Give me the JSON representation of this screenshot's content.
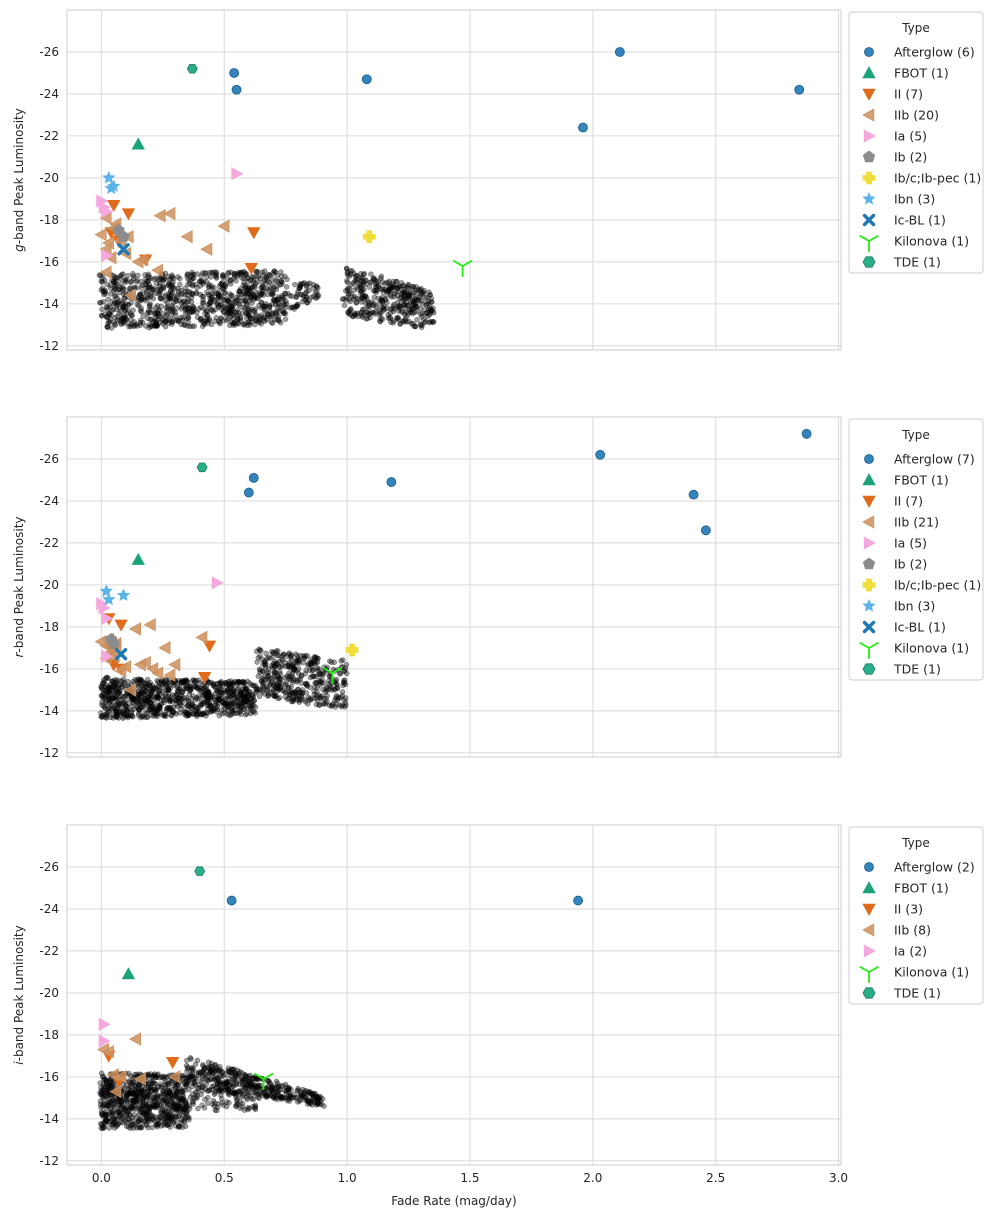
{
  "figure": {
    "xlabel": "Fade Rate (mag/day)",
    "x_ticks": [
      "0.0",
      "0.5",
      "1.0",
      "1.5",
      "2.0",
      "2.5",
      "3.0"
    ],
    "y_ticks": [
      "-26",
      "-24",
      "-22",
      "-20",
      "-18",
      "-16",
      "-14",
      "-12"
    ],
    "legend_title": "Type"
  },
  "colors": {
    "Afterglow": "#1f77b4",
    "FBOT": "#1aa37a",
    "II": "#e06c1b",
    "IIb": "#cc915f",
    "Ia": "#f5a8de",
    "Ib": "#8c8c8c",
    "Ib/c;Ib-pec": "#f0de3c",
    "Ibn": "#5cb3e8",
    "Ic-BL": "#1f77b4",
    "Kilonova": "#22ee11",
    "TDE": "#2aae8a",
    "background": "#000000"
  },
  "chart_data": [
    {
      "type": "scatter",
      "band_label": "g",
      "ylabel": "g-band Peak Luminosity",
      "ylim": [
        -28,
        -11.8
      ],
      "xlim": [
        -0.14,
        3.01
      ],
      "grid": true,
      "legend_position": "right",
      "legend": [
        "Afterglow (6)",
        "FBOT (1)",
        "II (7)",
        "IIb (20)",
        "Ia (5)",
        "Ib (2)",
        "Ib/c;Ib-pec (1)",
        "Ibn (3)",
        "Ic-BL (1)",
        "Kilonova (1)",
        "TDE (1)"
      ],
      "series": [
        {
          "name": "Afterglow",
          "marker": "circle",
          "points": [
            [
              0.54,
              -25.0
            ],
            [
              0.55,
              -24.2
            ],
            [
              1.08,
              -24.7
            ],
            [
              1.96,
              -22.4
            ],
            [
              2.11,
              -26.0
            ],
            [
              2.84,
              -24.2
            ]
          ]
        },
        {
          "name": "FBOT",
          "marker": "triangle-up",
          "points": [
            [
              0.15,
              -21.6
            ]
          ]
        },
        {
          "name": "II",
          "marker": "triangle-down",
          "points": [
            [
              0.05,
              -18.7
            ],
            [
              0.11,
              -18.3
            ],
            [
              0.04,
              -17.4
            ],
            [
              0.62,
              -17.4
            ],
            [
              0.07,
              -17.0
            ],
            [
              0.18,
              -16.1
            ],
            [
              0.61,
              -15.7
            ]
          ]
        },
        {
          "name": "IIb",
          "marker": "triangle-left",
          "points": [
            [
              0.02,
              -18.1
            ],
            [
              0.24,
              -18.2
            ],
            [
              0.28,
              -18.3
            ],
            [
              0.5,
              -17.7
            ],
            [
              0.0,
              -17.3
            ],
            [
              0.05,
              -17.6
            ],
            [
              0.11,
              -17.2
            ],
            [
              0.35,
              -17.2
            ],
            [
              0.03,
              -16.9
            ],
            [
              0.43,
              -16.6
            ],
            [
              0.02,
              -16.6
            ],
            [
              0.1,
              -16.4
            ],
            [
              0.15,
              -16.0
            ],
            [
              0.23,
              -15.6
            ],
            [
              0.02,
              -15.5
            ],
            [
              0.12,
              -14.4
            ],
            [
              0.08,
              -17.0
            ],
            [
              0.04,
              -16.2
            ],
            [
              0.17,
              -16.1
            ],
            [
              0.06,
              -17.8
            ]
          ]
        },
        {
          "name": "Ia",
          "marker": "triangle-right",
          "points": [
            [
              0.0,
              -18.9
            ],
            [
              0.01,
              -18.6
            ],
            [
              0.02,
              -18.4
            ],
            [
              0.55,
              -20.2
            ],
            [
              0.02,
              -16.3
            ]
          ]
        },
        {
          "name": "Ib",
          "marker": "pentagon",
          "points": [
            [
              0.07,
              -17.5
            ],
            [
              0.09,
              -17.2
            ]
          ]
        },
        {
          "name": "Ib/c;Ib-pec",
          "marker": "plus",
          "points": [
            [
              1.09,
              -17.2
            ]
          ]
        },
        {
          "name": "Ibn",
          "marker": "star",
          "points": [
            [
              0.03,
              -20.0
            ],
            [
              0.05,
              -19.6
            ],
            [
              0.04,
              -19.5
            ]
          ]
        },
        {
          "name": "Ic-BL",
          "marker": "x",
          "points": [
            [
              0.09,
              -16.6
            ]
          ]
        },
        {
          "name": "Kilonova",
          "marker": "tri",
          "points": [
            [
              1.47,
              -15.8
            ]
          ]
        },
        {
          "name": "TDE",
          "marker": "hexagon",
          "points": [
            [
              0.37,
              -25.2
            ]
          ]
        }
      ],
      "background_clusters": [
        {
          "x": [
            0.0,
            0.75
          ],
          "y_top": [
            -15.4,
            -15.6
          ],
          "y_bottom": [
            -12.8,
            -13.0
          ],
          "n": 900
        },
        {
          "x": [
            0.75,
            0.88
          ],
          "y_top": [
            -15.2,
            -14.9
          ],
          "y_bottom": [
            -13.5,
            -14.3
          ],
          "n": 60
        },
        {
          "x": [
            0.99,
            1.35
          ],
          "y_top": [
            -15.8,
            -14.6
          ],
          "y_bottom": [
            -13.4,
            -12.8
          ],
          "n": 380
        }
      ]
    },
    {
      "type": "scatter",
      "band_label": "r",
      "ylabel": "r-band Peak Luminosity",
      "ylim": [
        -28,
        -11.8
      ],
      "xlim": [
        -0.14,
        3.01
      ],
      "grid": true,
      "legend_position": "right",
      "legend": [
        "Afterglow (7)",
        "FBOT (1)",
        "II (7)",
        "IIb (21)",
        "Ia (5)",
        "Ib (2)",
        "Ib/c;Ib-pec (1)",
        "Ibn (3)",
        "Ic-BL (1)",
        "Kilonova (1)",
        "TDE (1)"
      ],
      "series": [
        {
          "name": "Afterglow",
          "marker": "circle",
          "points": [
            [
              0.6,
              -24.4
            ],
            [
              0.62,
              -25.1
            ],
            [
              1.18,
              -24.9
            ],
            [
              2.03,
              -26.2
            ],
            [
              2.41,
              -24.3
            ],
            [
              2.46,
              -22.6
            ],
            [
              2.87,
              -27.2
            ]
          ]
        },
        {
          "name": "FBOT",
          "marker": "triangle-up",
          "points": [
            [
              0.15,
              -21.2
            ]
          ]
        },
        {
          "name": "II",
          "marker": "triangle-down",
          "points": [
            [
              0.03,
              -18.4
            ],
            [
              0.08,
              -18.1
            ],
            [
              0.44,
              -17.1
            ],
            [
              0.04,
              -16.9
            ],
            [
              0.05,
              -16.2
            ],
            [
              0.08,
              -16.0
            ],
            [
              0.42,
              -15.6
            ]
          ]
        },
        {
          "name": "IIb",
          "marker": "triangle-left",
          "points": [
            [
              0.14,
              -17.9
            ],
            [
              0.2,
              -18.1
            ],
            [
              0.0,
              -17.3
            ],
            [
              0.03,
              -17.4
            ],
            [
              0.06,
              -17.2
            ],
            [
              0.26,
              -17.0
            ],
            [
              0.41,
              -17.5
            ],
            [
              0.04,
              -16.8
            ],
            [
              0.02,
              -16.5
            ],
            [
              0.16,
              -16.2
            ],
            [
              0.3,
              -16.2
            ],
            [
              0.21,
              -16.0
            ],
            [
              0.12,
              -15.0
            ],
            [
              0.06,
              -17.1
            ],
            [
              0.28,
              -15.7
            ],
            [
              0.1,
              -16.1
            ],
            [
              0.05,
              -16.6
            ],
            [
              0.18,
              -16.3
            ],
            [
              0.08,
              -15.9
            ],
            [
              0.02,
              -17.1
            ],
            [
              0.23,
              -15.8
            ]
          ]
        },
        {
          "name": "Ia",
          "marker": "triangle-right",
          "points": [
            [
              0.0,
              -19.1
            ],
            [
              0.01,
              -18.9
            ],
            [
              0.02,
              -18.4
            ],
            [
              0.47,
              -20.1
            ],
            [
              0.02,
              -16.6
            ]
          ]
        },
        {
          "name": "Ib",
          "marker": "pentagon",
          "points": [
            [
              0.04,
              -17.4
            ],
            [
              0.05,
              -17.2
            ]
          ]
        },
        {
          "name": "Ib/c;Ib-pec",
          "marker": "plus",
          "points": [
            [
              1.02,
              -16.9
            ]
          ]
        },
        {
          "name": "Ibn",
          "marker": "star",
          "points": [
            [
              0.02,
              -19.7
            ],
            [
              0.09,
              -19.5
            ],
            [
              0.03,
              -19.3
            ]
          ]
        },
        {
          "name": "Ic-BL",
          "marker": "x",
          "points": [
            [
              0.08,
              -16.7
            ]
          ]
        },
        {
          "name": "Kilonova",
          "marker": "tri",
          "points": [
            [
              0.94,
              -15.8
            ]
          ]
        },
        {
          "name": "TDE",
          "marker": "hexagon",
          "points": [
            [
              0.41,
              -25.6
            ]
          ]
        }
      ],
      "background_clusters": [
        {
          "x": [
            0.0,
            0.62
          ],
          "y_top": [
            -15.6,
            -15.4
          ],
          "y_bottom": [
            -13.6,
            -13.8
          ],
          "n": 850
        },
        {
          "x": [
            0.63,
            1.0
          ],
          "y_top": [
            -17.0,
            -16.4
          ],
          "y_bottom": [
            -14.6,
            -14.1
          ],
          "n": 400
        }
      ]
    },
    {
      "type": "scatter",
      "band_label": "i",
      "ylabel": "i-band Peak Luminosity",
      "ylim": [
        -28,
        -11.8
      ],
      "xlim": [
        -0.14,
        3.01
      ],
      "grid": true,
      "legend_position": "right",
      "legend": [
        "Afterglow (2)",
        "FBOT (1)",
        "II (3)",
        "IIb (8)",
        "Ia (2)",
        "Kilonova (1)",
        "TDE (1)"
      ],
      "series": [
        {
          "name": "Afterglow",
          "marker": "circle",
          "points": [
            [
              0.53,
              -24.4
            ],
            [
              1.94,
              -24.4
            ]
          ]
        },
        {
          "name": "FBOT",
          "marker": "triangle-up",
          "points": [
            [
              0.11,
              -20.9
            ]
          ]
        },
        {
          "name": "II",
          "marker": "triangle-down",
          "points": [
            [
              0.03,
              -17.0
            ],
            [
              0.29,
              -16.7
            ],
            [
              0.07,
              -15.8
            ]
          ]
        },
        {
          "name": "IIb",
          "marker": "triangle-left",
          "points": [
            [
              0.14,
              -17.8
            ],
            [
              0.01,
              -17.3
            ],
            [
              0.03,
              -17.2
            ],
            [
              0.3,
              -16.0
            ],
            [
              0.16,
              -15.9
            ],
            [
              0.06,
              -15.3
            ],
            [
              0.08,
              -16.0
            ],
            [
              0.05,
              -16.1
            ]
          ]
        },
        {
          "name": "Ia",
          "marker": "triangle-right",
          "points": [
            [
              0.01,
              -18.5
            ],
            [
              0.01,
              -17.7
            ]
          ]
        },
        {
          "name": "Kilonova",
          "marker": "tri",
          "points": [
            [
              0.66,
              -15.9
            ]
          ]
        },
        {
          "name": "TDE",
          "marker": "hexagon",
          "points": [
            [
              0.4,
              -25.8
            ]
          ]
        }
      ],
      "background_clusters": [
        {
          "x": [
            0.0,
            0.35
          ],
          "y_top": [
            -16.2,
            -16.1
          ],
          "y_bottom": [
            -13.5,
            -13.6
          ],
          "n": 650
        },
        {
          "x": [
            0.35,
            0.9
          ],
          "y_top": [
            -17.0,
            -15.1
          ],
          "y_bottom": [
            -15.5,
            -14.6
          ],
          "n": 420
        },
        {
          "x": [
            0.0,
            0.65
          ],
          "y_top": [
            -15.5,
            -15.3
          ],
          "y_bottom": [
            -14.2,
            -14.4
          ],
          "n": 150
        }
      ]
    }
  ]
}
